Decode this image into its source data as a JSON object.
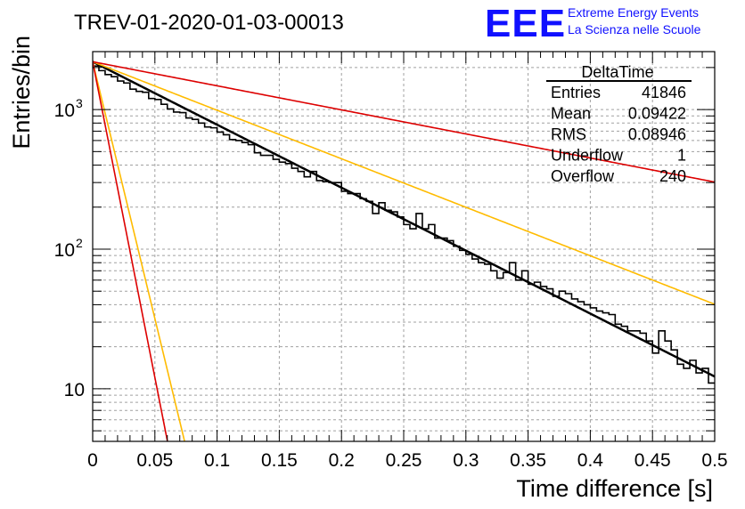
{
  "title": "TREV-01-2020-01-03-00013",
  "logo": {
    "letters": "EEE",
    "line1": "Extreme Energy Events",
    "line2": "La Scienza nelle Scuole",
    "color": "#1010ff"
  },
  "stats_box": {
    "title": "DeltaTime",
    "rows": [
      {
        "label": "Entries",
        "value": "41846"
      },
      {
        "label": "Mean",
        "value": "0.09422"
      },
      {
        "label": "RMS",
        "value": "0.08946"
      },
      {
        "label": "Underflow",
        "value": "1"
      },
      {
        "label": "Overflow",
        "value": "240"
      }
    ]
  },
  "chart_data": {
    "type": "line",
    "title": "TREV-01-2020-01-03-00013",
    "xlabel": "Time difference [s]",
    "ylabel": "Entries/bin",
    "xlim": [
      0,
      0.5
    ],
    "ylim": [
      4.2,
      2600
    ],
    "ylog": true,
    "grid": true,
    "x_ticks": [
      "0",
      "0.05",
      "0.1",
      "0.15",
      "0.2",
      "0.25",
      "0.3",
      "0.35",
      "0.4",
      "0.45",
      "0.5"
    ],
    "y_ticks": [
      {
        "base": "10",
        "exp": "",
        "value": 10
      },
      {
        "base": "10",
        "exp": "2",
        "value": 100
      },
      {
        "base": "10",
        "exp": "3",
        "value": 1000
      }
    ],
    "histogram": {
      "name": "DeltaTime",
      "bin_width": 0.005,
      "color": "#000000",
      "values": [
        2050,
        1900,
        1780,
        1720,
        1600,
        1550,
        1400,
        1350,
        1330,
        1200,
        1180,
        1090,
        1010,
        960,
        950,
        870,
        850,
        800,
        750,
        740,
        690,
        660,
        610,
        600,
        580,
        560,
        490,
        470,
        470,
        440,
        420,
        410,
        380,
        360,
        330,
        360,
        310,
        305,
        300,
        300,
        260,
        250,
        250,
        230,
        220,
        180,
        215,
        190,
        185,
        170,
        150,
        140,
        180,
        140,
        150,
        120,
        120,
        115,
        105,
        98,
        92,
        85,
        80,
        78,
        70,
        62,
        68,
        80,
        60,
        70,
        56,
        58,
        54,
        52,
        46,
        50,
        48,
        44,
        42,
        40,
        38,
        36,
        35,
        34,
        29,
        28,
        26,
        26,
        25,
        22,
        18,
        26,
        22,
        19,
        15,
        14,
        16,
        13,
        14,
        11
      ]
    },
    "fits": [
      {
        "name": "fit",
        "color": "#000000",
        "stroke": 2.5,
        "a": 2200,
        "tau": 0.0963,
        "x_end": 0.5
      },
      {
        "name": "",
        "color": "#ffbb00",
        "stroke": 1.6,
        "a": 2200,
        "tau": 0.125,
        "x_end": 0.5
      },
      {
        "name": "",
        "color": "#ffbb00",
        "stroke": 1.6,
        "a": 2200,
        "tau": 0.0118,
        "x_end": 0.5
      },
      {
        "name": "",
        "color": "#dd0000",
        "stroke": 1.6,
        "a": 2200,
        "tau": 0.252,
        "x_end": 0.5
      },
      {
        "name": "",
        "color": "#dd0000",
        "stroke": 1.6,
        "a": 2200,
        "tau": 0.0096,
        "x_end": 0.5
      }
    ]
  }
}
